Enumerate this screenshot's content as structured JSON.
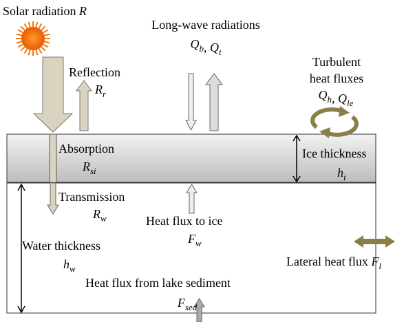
{
  "solar": {
    "label": "Solar radiation",
    "symbols": [
      {
        "base": "R"
      }
    ]
  },
  "longwave": {
    "label": "Long-wave  radiations",
    "symbols": [
      {
        "base": "Q",
        "sub": "b"
      },
      {
        "base": "Q",
        "sub": "t"
      }
    ],
    "separator": ", "
  },
  "reflection": {
    "label": "Reflection",
    "symbols": [
      {
        "base": "R",
        "sub": "r"
      }
    ]
  },
  "turbulent": {
    "label": "Turbulent",
    "label2": "heat fluxes",
    "symbols": [
      {
        "base": "Q",
        "sub": "h"
      },
      {
        "base": "Q",
        "sub": "le"
      }
    ],
    "separator": ", "
  },
  "absorption": {
    "label": "Absorption",
    "symbols": [
      {
        "base": "R",
        "sub": "si"
      }
    ]
  },
  "ice_thickness": {
    "label": "Ice thickness",
    "symbols": [
      {
        "base": "h",
        "sub": "i"
      }
    ]
  },
  "transmission": {
    "label": "Transmission",
    "symbols": [
      {
        "base": "R",
        "sub": "w"
      }
    ]
  },
  "heat_flux_to_ice": {
    "label": "Heat flux to ice",
    "symbols": [
      {
        "base": "F",
        "sub": "w"
      }
    ]
  },
  "water_thickness": {
    "label": "Water thickness",
    "symbols": [
      {
        "base": "h",
        "sub": "w"
      }
    ]
  },
  "lateral": {
    "label": "Lateral heat flux",
    "symbols": [
      {
        "base": "F",
        "sub": "l"
      }
    ]
  },
  "sediment": {
    "label": "Heat flux from lake sediment",
    "symbols": [
      {
        "base": "F",
        "sub": "sed"
      }
    ]
  }
}
